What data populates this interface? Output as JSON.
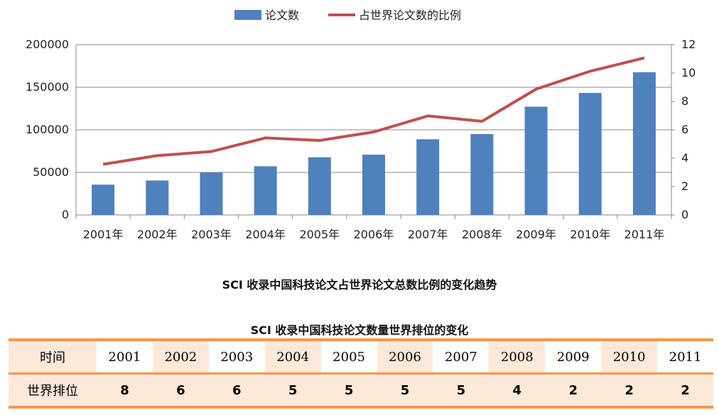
{
  "chart_data": {
    "type": "bar+line",
    "categories": [
      "2001年",
      "2002年",
      "2003年",
      "2004年",
      "2005年",
      "2006年",
      "2007年",
      "2008年",
      "2009年",
      "2010年",
      "2011年"
    ],
    "series": [
      {
        "name": "论文数",
        "type": "bar",
        "axis": "left",
        "color": "#4f81bd",
        "values": [
          35600,
          40500,
          49700,
          57200,
          67800,
          70800,
          88900,
          95000,
          127200,
          143300,
          167700
        ]
      },
      {
        "name": "占世界论文数的比例",
        "type": "line",
        "axis": "right",
        "color": "#c0504d",
        "values": [
          3.57,
          4.18,
          4.47,
          5.43,
          5.25,
          5.85,
          6.98,
          6.6,
          8.87,
          10.13,
          11.07
        ]
      }
    ],
    "ylim": [
      0,
      200000
    ],
    "yticks": [
      "0",
      "50000",
      "100000",
      "150000",
      "200000"
    ],
    "y2lim": [
      0,
      12
    ],
    "y2ticks": [
      "0",
      "2",
      "4",
      "6",
      "8",
      "10",
      "12"
    ],
    "legend": "top",
    "grid": true,
    "title": "SCI 收录中国科技论文占世界论文总数比例的变化趋势"
  },
  "table": {
    "title": "SCI 收录中国科技论文数量世界排位的变化",
    "row_headers": [
      "时间",
      "世界排位"
    ],
    "years": [
      "2001",
      "2002",
      "2003",
      "2004",
      "2005",
      "2006",
      "2007",
      "2008",
      "2009",
      "2010",
      "2011"
    ],
    "ranks": [
      "8",
      "6",
      "6",
      "5",
      "5",
      "5",
      "5",
      "4",
      "2",
      "2",
      "2"
    ]
  }
}
